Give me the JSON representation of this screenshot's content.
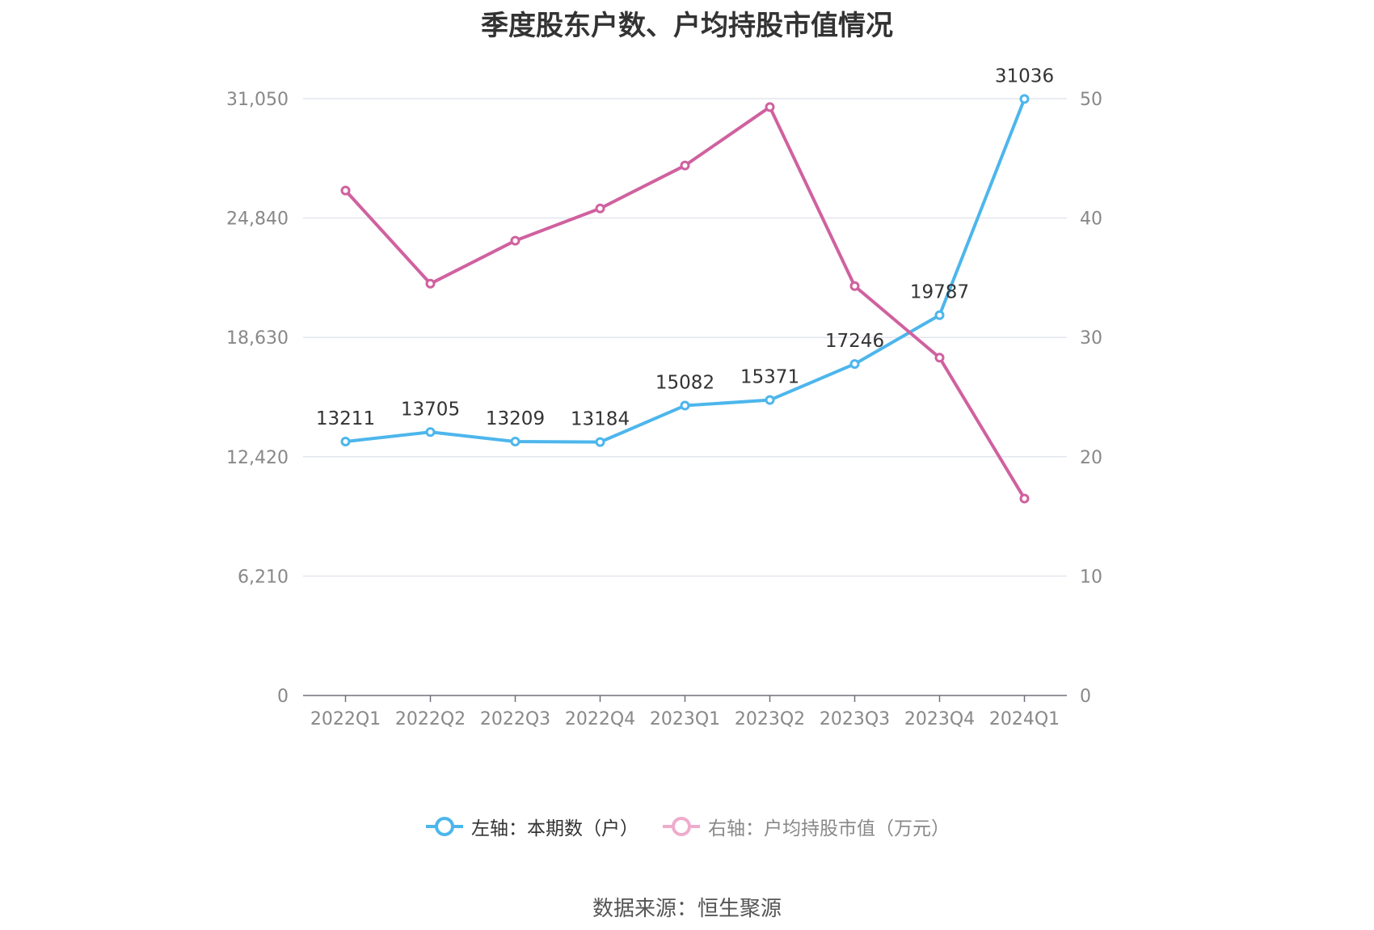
{
  "title": "季度股东户数、户均持股市值情况",
  "source": "数据来源：恒生聚源",
  "chart_data": {
    "type": "line",
    "categories": [
      "2022Q1",
      "2022Q2",
      "2022Q3",
      "2022Q4",
      "2023Q1",
      "2023Q2",
      "2023Q3",
      "2023Q4",
      "2024Q1"
    ],
    "left_axis": {
      "ticks": [
        "0",
        "6,210",
        "12,420",
        "18,630",
        "24,840",
        "31,050"
      ],
      "ylim": [
        0,
        31050
      ]
    },
    "right_axis": {
      "ticks": [
        "0",
        "10",
        "20",
        "30",
        "40",
        "50"
      ],
      "ylim": [
        0,
        50
      ]
    },
    "series": [
      {
        "name": "左轴：本期数（户）",
        "axis": "left",
        "color": "#4db6ec",
        "values": [
          13211,
          13705,
          13209,
          13184,
          15082,
          15371,
          17246,
          19787,
          31036
        ],
        "labels": [
          "13211",
          "13705",
          "13209",
          "13184",
          "15082",
          "15371",
          "17246",
          "19787",
          "31036"
        ]
      },
      {
        "name": "右轴：户均持股市值（万元）",
        "axis": "right",
        "color": "#d0619f",
        "values": [
          42.3,
          34.5,
          38.1,
          40.8,
          44.4,
          49.3,
          34.3,
          28.3,
          16.5
        ]
      }
    ],
    "grid": true,
    "legend_position": "bottom"
  }
}
